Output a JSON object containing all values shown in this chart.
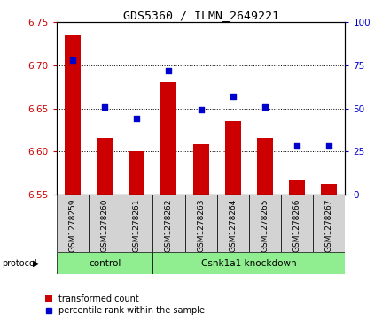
{
  "title": "GDS5360 / ILMN_2649221",
  "samples": [
    "GSM1278259",
    "GSM1278260",
    "GSM1278261",
    "GSM1278262",
    "GSM1278263",
    "GSM1278264",
    "GSM1278265",
    "GSM1278266",
    "GSM1278267"
  ],
  "bar_values": [
    6.735,
    6.615,
    6.6,
    6.68,
    6.608,
    6.635,
    6.615,
    6.567,
    6.562
  ],
  "percentile_values": [
    78,
    51,
    44,
    72,
    49,
    57,
    51,
    28,
    28
  ],
  "bar_color": "#cc0000",
  "percentile_color": "#0000cc",
  "ylim_left": [
    6.55,
    6.75
  ],
  "ylim_right": [
    0,
    100
  ],
  "yticks_left": [
    6.55,
    6.6,
    6.65,
    6.7,
    6.75
  ],
  "yticks_right": [
    0,
    25,
    50,
    75,
    100
  ],
  "protocol_label": "protocol",
  "control_label": "control",
  "knockdown_label": "Csnk1a1 knockdown",
  "legend_bar_label": "transformed count",
  "legend_dot_label": "percentile rank within the sample",
  "background_color": "#ffffff",
  "plot_bg": "#ffffff",
  "tick_label_color_left": "#cc0000",
  "tick_label_color_right": "#0000cc",
  "bar_width": 0.5,
  "bar_bottom": 6.55,
  "label_box_color": "#d3d3d3",
  "group_color": "#90ee90",
  "control_count": 3,
  "total_count": 9
}
